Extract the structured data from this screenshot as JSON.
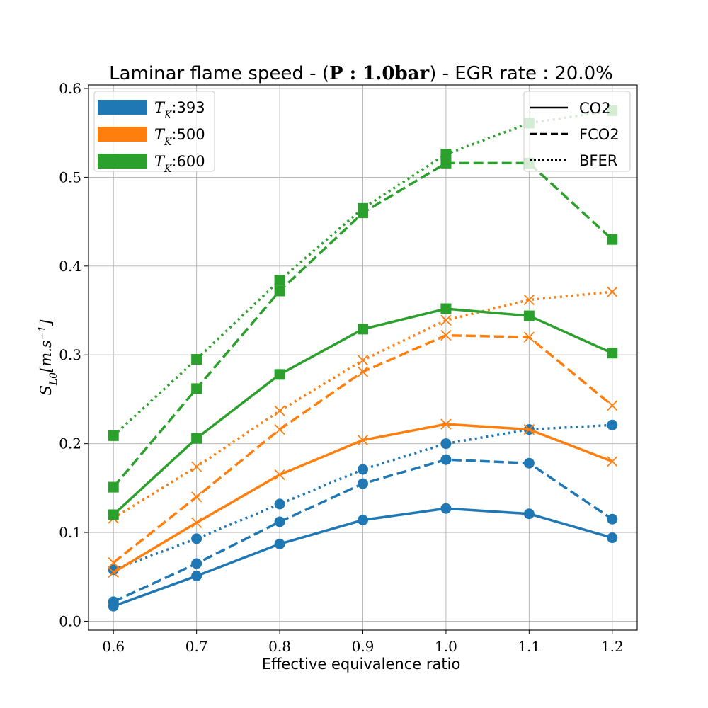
{
  "chart_data": {
    "type": "line",
    "title": {
      "prefix": "Laminar flame speed - (",
      "math": "P : 1.0bar",
      "suffix": ") - EGR rate : 20.0%"
    },
    "xlabel": "Effective equivalence ratio",
    "ylabel": "S",
    "ylabel_sub": "L0",
    "ylabel_unit": "[m.s",
    "ylabel_sup": "−1",
    "ylabel_end": "]",
    "x": [
      0.6,
      0.7,
      0.8,
      0.9,
      1.0,
      1.1,
      1.2
    ],
    "xlim": [
      0.57,
      1.23
    ],
    "ylim": [
      -0.01,
      0.604
    ],
    "xticks": [
      "0.6",
      "0.7",
      "0.8",
      "0.9",
      "1.0",
      "1.1",
      "1.2"
    ],
    "yticks": [
      "0.0",
      "0.1",
      "0.2",
      "0.3",
      "0.4",
      "0.5",
      "0.6"
    ],
    "grid": true,
    "colors": {
      "T393": "#1f77b4",
      "T500": "#ff7f0e",
      "T600": "#2ca02c"
    },
    "legend_temperature": [
      {
        "math": "T",
        "sub": "K",
        "value": ":393",
        "color": "#1f77b4"
      },
      {
        "math": "T",
        "sub": "K",
        "value": ":500",
        "color": "#ff7f0e"
      },
      {
        "math": "T",
        "sub": "K",
        "value": ":600",
        "color": "#2ca02c"
      }
    ],
    "legend_temperature_placement": "upper-left",
    "legend_method": [
      {
        "label": "CO2",
        "style": "solid"
      },
      {
        "label": "FCO2",
        "style": "dashed"
      },
      {
        "label": "BFER",
        "style": "dotted"
      }
    ],
    "legend_method_placement": "upper-right",
    "series": [
      {
        "temperature": "393",
        "method": "CO2",
        "style": "solid",
        "marker": "circle",
        "color": "#1f77b4",
        "values": [
          0.017,
          0.051,
          0.087,
          0.114,
          0.127,
          0.121,
          0.094
        ]
      },
      {
        "temperature": "393",
        "method": "FCO2",
        "style": "dashed",
        "marker": "circle",
        "color": "#1f77b4",
        "values": [
          0.022,
          0.065,
          0.112,
          0.155,
          0.182,
          0.178,
          0.115
        ]
      },
      {
        "temperature": "393",
        "method": "BFER",
        "style": "dotted",
        "marker": "circle",
        "color": "#1f77b4",
        "values": [
          0.058,
          0.093,
          0.132,
          0.171,
          0.2,
          0.216,
          0.221
        ]
      },
      {
        "temperature": "500",
        "method": "CO2",
        "style": "solid",
        "marker": "x",
        "color": "#ff7f0e",
        "values": [
          0.055,
          0.111,
          0.165,
          0.204,
          0.222,
          0.216,
          0.18
        ]
      },
      {
        "temperature": "500",
        "method": "FCO2",
        "style": "dashed",
        "marker": "x",
        "color": "#ff7f0e",
        "values": [
          0.066,
          0.14,
          0.216,
          0.281,
          0.322,
          0.32,
          0.243
        ]
      },
      {
        "temperature": "500",
        "method": "BFER",
        "style": "dotted",
        "marker": "x",
        "color": "#ff7f0e",
        "values": [
          0.116,
          0.174,
          0.237,
          0.294,
          0.339,
          0.362,
          0.371
        ]
      },
      {
        "temperature": "600",
        "method": "CO2",
        "style": "solid",
        "marker": "square",
        "color": "#2ca02c",
        "values": [
          0.12,
          0.206,
          0.278,
          0.329,
          0.352,
          0.344,
          0.302
        ]
      },
      {
        "temperature": "600",
        "method": "FCO2",
        "style": "dashed",
        "marker": "square",
        "color": "#2ca02c",
        "values": [
          0.151,
          0.262,
          0.372,
          0.46,
          0.516,
          0.516,
          0.43
        ]
      },
      {
        "temperature": "600",
        "method": "BFER",
        "style": "dotted",
        "marker": "square",
        "color": "#2ca02c",
        "values": [
          0.209,
          0.295,
          0.384,
          0.465,
          0.526,
          0.561,
          0.575
        ]
      }
    ]
  }
}
